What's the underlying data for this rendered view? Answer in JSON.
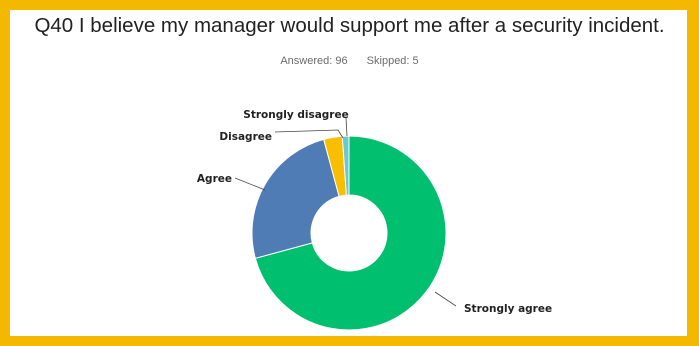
{
  "question": {
    "title": "Q40 I believe my manager would support me after a security incident.",
    "answered_label": "Answered: 96",
    "skipped_label": "Skipped: 5"
  },
  "colors": {
    "frame": "#f5b800"
  },
  "chart_data": {
    "type": "pie",
    "donut": true,
    "categories": [
      "Strongly agree",
      "Agree",
      "Disagree",
      "Strongly disagree"
    ],
    "values": [
      70.8,
      25.0,
      3.1,
      1.1
    ],
    "colors": [
      "#00bf6f",
      "#507cb6",
      "#f9be00",
      "#6bc8cd"
    ],
    "start_angle_deg": 0,
    "direction": "clockwise",
    "legend": "none"
  }
}
